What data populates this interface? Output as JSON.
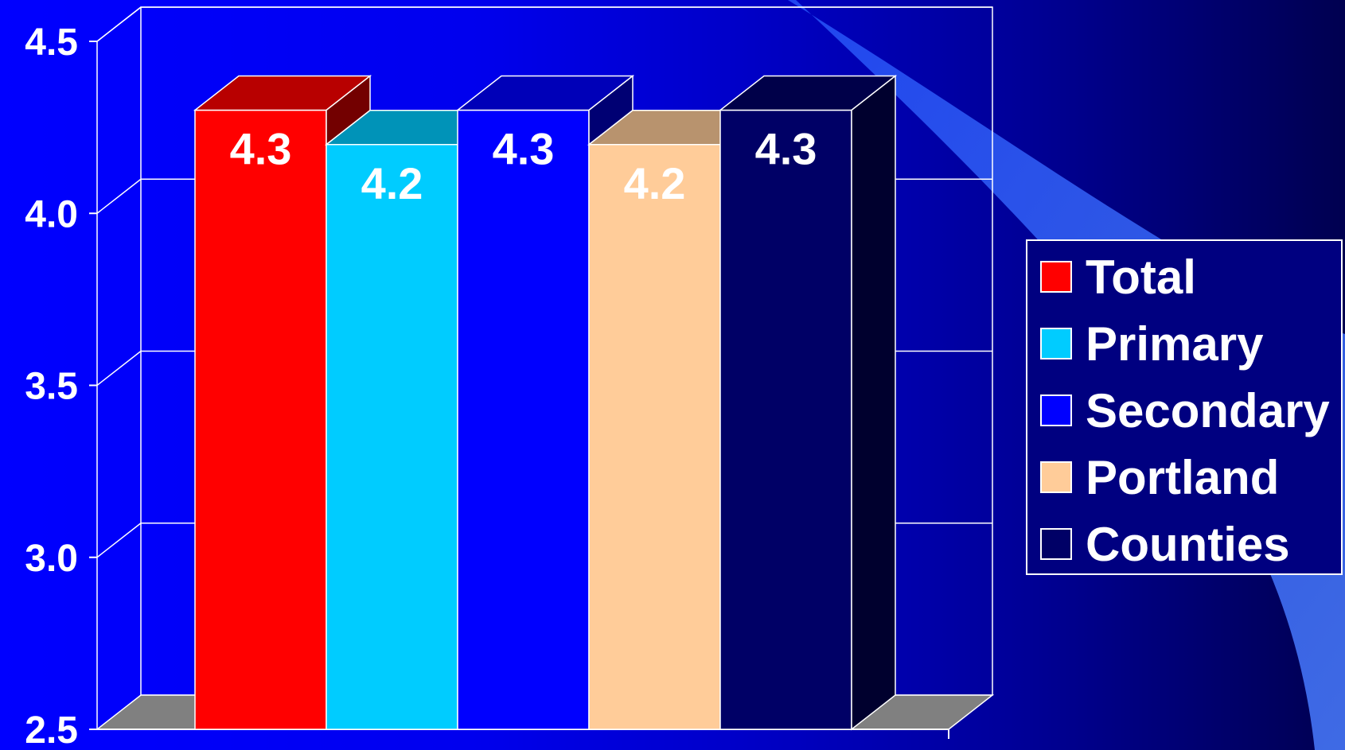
{
  "chart_data": {
    "type": "bar",
    "three_d": true,
    "categories": [
      "Total",
      "Primary",
      "Secondary",
      "Portland",
      "Counties"
    ],
    "values": [
      4.3,
      4.2,
      4.3,
      4.2,
      4.3
    ],
    "data_labels": [
      "4.3",
      "4.2",
      "4.3",
      "4.2",
      "4.3"
    ],
    "colors": [
      "#ff0000",
      "#00ccff",
      "#0000ff",
      "#ffcc99",
      "#000066"
    ],
    "ylim": [
      2.5,
      4.5
    ],
    "yticks": [
      2.5,
      3.0,
      3.5,
      4.0,
      4.5
    ],
    "ytick_labels": [
      "2.5",
      "3.0",
      "3.5",
      "4.0",
      "4.5"
    ],
    "grid": true,
    "legend": {
      "placement": "right",
      "entries": [
        "Total",
        "Primary",
        "Secondary",
        "Portland",
        "Counties"
      ]
    },
    "title": "",
    "xlabel": "",
    "ylabel": ""
  }
}
